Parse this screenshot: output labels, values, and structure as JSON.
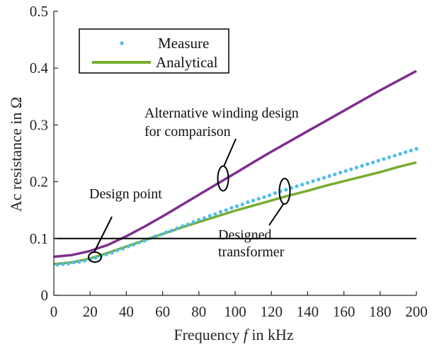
{
  "chart_data": {
    "type": "line",
    "xlabel_prefix": "Frequency ",
    "xlabel_var": "f",
    "xlabel_suffix": " in kHz",
    "ylabel": "Ac resistance in Ω",
    "xlim": [
      0,
      200
    ],
    "ylim": [
      0,
      0.5
    ],
    "xticks": [
      0,
      20,
      40,
      60,
      80,
      100,
      120,
      140,
      160,
      180,
      200
    ],
    "yticks": [
      0,
      0.1,
      0.2,
      0.3,
      0.4,
      0.5
    ],
    "ytick_labels": [
      "0",
      "0.1",
      "0.2",
      "0.3",
      "0.4",
      "0.5"
    ],
    "grid": false,
    "legend_position": "top-left",
    "reference_line": {
      "y": 0.1,
      "color": "#000000"
    },
    "series": [
      {
        "name": "Measure",
        "style": "dots",
        "color": "#4DBEEE",
        "x": [
          2,
          5,
          8,
          11,
          14,
          17,
          20,
          23,
          26,
          29,
          32,
          35,
          38,
          41,
          44,
          47,
          50,
          53,
          56,
          59,
          62,
          65,
          68,
          71,
          74,
          77,
          80,
          83,
          86,
          89,
          92,
          95,
          98,
          101,
          104,
          107,
          110,
          113,
          116,
          119,
          122,
          125,
          128,
          131,
          134,
          137,
          140,
          143,
          146,
          149,
          152,
          155,
          158,
          161,
          164,
          167,
          170,
          173,
          176,
          179,
          182,
          185,
          188,
          191,
          194,
          197,
          200
        ],
        "y": [
          0.054,
          0.055,
          0.056,
          0.058,
          0.059,
          0.061,
          0.063,
          0.066,
          0.069,
          0.072,
          0.075,
          0.079,
          0.082,
          0.086,
          0.089,
          0.093,
          0.096,
          0.1,
          0.104,
          0.107,
          0.111,
          0.114,
          0.118,
          0.122,
          0.125,
          0.129,
          0.133,
          0.136,
          0.14,
          0.143,
          0.147,
          0.15,
          0.154,
          0.157,
          0.16,
          0.164,
          0.167,
          0.17,
          0.173,
          0.176,
          0.18,
          0.183,
          0.186,
          0.189,
          0.192,
          0.195,
          0.198,
          0.201,
          0.204,
          0.207,
          0.21,
          0.213,
          0.216,
          0.219,
          0.222,
          0.225,
          0.228,
          0.231,
          0.234,
          0.237,
          0.24,
          0.243,
          0.246,
          0.249,
          0.252,
          0.255,
          0.258
        ]
      },
      {
        "name": "Analytical",
        "style": "line",
        "color": "#77AC30",
        "x": [
          0,
          10,
          20,
          30,
          40,
          50,
          60,
          70,
          80,
          90,
          100,
          110,
          120,
          130,
          140,
          150,
          160,
          170,
          180,
          190,
          200
        ],
        "y": [
          0.055,
          0.058,
          0.065,
          0.075,
          0.086,
          0.097,
          0.108,
          0.119,
          0.129,
          0.139,
          0.149,
          0.158,
          0.167,
          0.176,
          0.184,
          0.193,
          0.201,
          0.209,
          0.217,
          0.226,
          0.234
        ]
      },
      {
        "name": "",
        "style": "line",
        "color": "#7E2F8E",
        "x": [
          0,
          10,
          20,
          30,
          40,
          50,
          60,
          70,
          80,
          90,
          100,
          110,
          120,
          130,
          140,
          150,
          160,
          170,
          180,
          190,
          200
        ],
        "y": [
          0.068,
          0.071,
          0.078,
          0.089,
          0.104,
          0.121,
          0.139,
          0.158,
          0.177,
          0.196,
          0.215,
          0.234,
          0.253,
          0.271,
          0.289,
          0.307,
          0.325,
          0.343,
          0.361,
          0.378,
          0.395
        ]
      }
    ],
    "annotations": [
      {
        "lines": [
          "Alternative winding design",
          "for comparison"
        ]
      },
      {
        "lines": [
          "Design point"
        ]
      },
      {
        "lines": [
          "Designed",
          "transformer"
        ]
      }
    ]
  }
}
